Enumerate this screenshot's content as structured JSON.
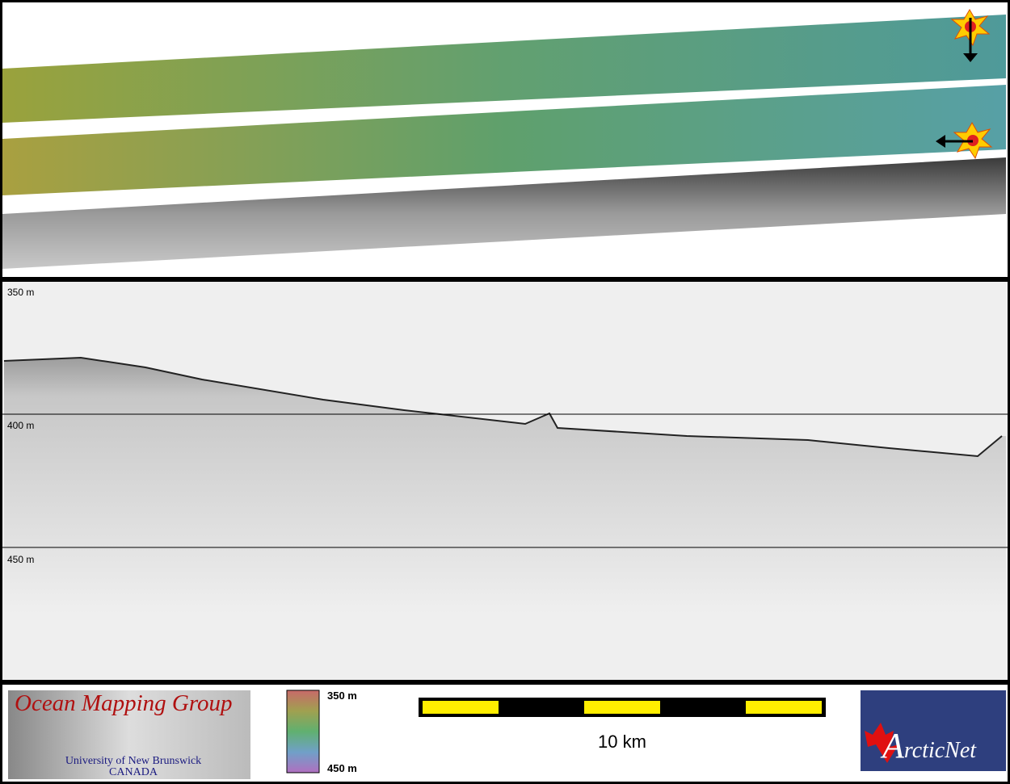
{
  "profile": {
    "depth_labels": [
      "350 m",
      "400 m",
      "450 m"
    ]
  },
  "footer": {
    "group_title": "Ocean Mapping Group",
    "university": "University of New Brunswick",
    "country": "CANADA",
    "color_scale": {
      "top_label": "350 m",
      "bottom_label": "450 m"
    },
    "scale_bar": {
      "label": "10 km"
    },
    "partner_logo": {
      "first_letter": "A",
      "rest": "rcticNet"
    }
  }
}
